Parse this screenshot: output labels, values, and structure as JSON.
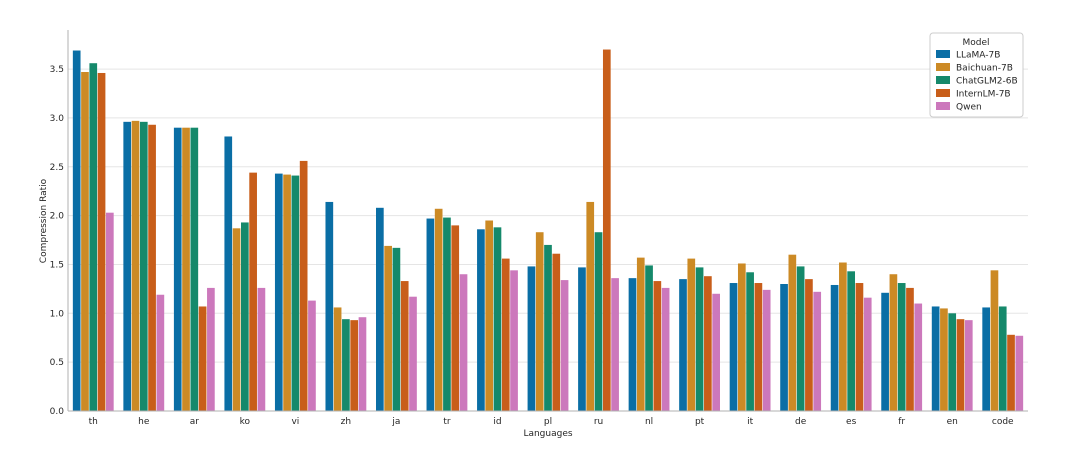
{
  "chart_data": {
    "type": "bar",
    "xlabel": "Languages",
    "ylabel": "Compression Ratio",
    "ylim": [
      0,
      3.9
    ],
    "yticks": [
      "0.0",
      "0.5",
      "1.0",
      "1.5",
      "2.0",
      "2.5",
      "3.0",
      "3.5"
    ],
    "grid": "horizontal",
    "legend": {
      "title": "Model",
      "position": "top-right"
    },
    "categories": [
      "th",
      "he",
      "ar",
      "ko",
      "vi",
      "zh",
      "ja",
      "tr",
      "id",
      "pl",
      "ru",
      "nl",
      "pt",
      "it",
      "de",
      "es",
      "fr",
      "en",
      "code"
    ],
    "series": [
      {
        "name": "LLaMA-7B",
        "color": "#0a6ea5",
        "values": [
          3.69,
          2.96,
          2.9,
          2.81,
          2.43,
          2.14,
          2.08,
          1.97,
          1.86,
          1.48,
          1.47,
          1.36,
          1.35,
          1.31,
          1.3,
          1.29,
          1.21,
          1.07,
          1.06
        ]
      },
      {
        "name": "Baichuan-7B",
        "color": "#cc8a25",
        "values": [
          3.47,
          2.97,
          2.9,
          1.87,
          2.42,
          1.06,
          1.69,
          2.07,
          1.95,
          1.83,
          2.14,
          1.57,
          1.56,
          1.51,
          1.6,
          1.52,
          1.4,
          1.05,
          1.44
        ]
      },
      {
        "name": "ChatGLM2-6B",
        "color": "#15896b",
        "values": [
          3.56,
          2.96,
          2.9,
          1.93,
          2.41,
          0.94,
          1.67,
          1.98,
          1.88,
          1.7,
          1.83,
          1.49,
          1.47,
          1.42,
          1.48,
          1.43,
          1.31,
          1.0,
          1.07
        ]
      },
      {
        "name": "InternLM-7B",
        "color": "#c85e1a",
        "values": [
          3.46,
          2.93,
          1.07,
          2.44,
          2.56,
          0.93,
          1.33,
          1.9,
          1.56,
          1.61,
          3.7,
          1.33,
          1.38,
          1.31,
          1.35,
          1.31,
          1.26,
          0.94,
          0.78
        ]
      },
      {
        "name": "Qwen",
        "color": "#cc78bc",
        "values": [
          2.03,
          1.19,
          1.26,
          1.26,
          1.13,
          0.96,
          1.17,
          1.4,
          1.44,
          1.34,
          1.36,
          1.26,
          1.2,
          1.24,
          1.22,
          1.16,
          1.1,
          0.93,
          0.77
        ]
      }
    ]
  }
}
